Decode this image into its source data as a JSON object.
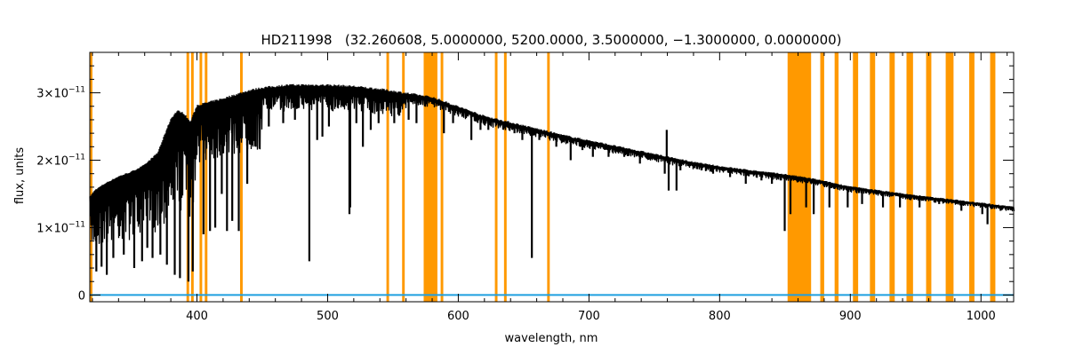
{
  "chart_data": {
    "type": "line",
    "title": "HD211998   (32.260608, 5.0000000, 5200.0000, 3.5000000, −1.3000000, 0.0000000)",
    "xlabel": "wavelength, nm",
    "ylabel": "flux, units",
    "xlim": [
      318,
      1025
    ],
    "ylim": [
      -1e-12,
      3.6e-11
    ],
    "x_ticks": [
      400,
      500,
      600,
      700,
      800,
      900,
      1000
    ],
    "x_tick_labels": [
      "400",
      "500",
      "600",
      "700",
      "800",
      "900",
      "1000"
    ],
    "y_ticks": [
      0,
      1e-11,
      2e-11,
      3e-11
    ],
    "y_tick_labels": [
      {
        "mant": "0",
        "exp": ""
      },
      {
        "mant": "1×10",
        "exp": "−11"
      },
      {
        "mant": "2×10",
        "exp": "−11"
      },
      {
        "mant": "3×10",
        "exp": "−11"
      }
    ],
    "grid": false,
    "colors": {
      "spectrum": "#000000",
      "masks": "#ff9900",
      "baseline": "#1f9fdf",
      "axes": "#000000"
    },
    "masked_regions_nm": [
      [
        318,
        320
      ],
      [
        392,
        394
      ],
      [
        395.5,
        397.5
      ],
      [
        402,
        404
      ],
      [
        406,
        408
      ],
      [
        433,
        435
      ],
      [
        545,
        547
      ],
      [
        557,
        559
      ],
      [
        573.5,
        584
      ],
      [
        586.5,
        588.5
      ],
      [
        628,
        630
      ],
      [
        635,
        637
      ],
      [
        668,
        670
      ],
      [
        852,
        870
      ],
      [
        877,
        880
      ],
      [
        888,
        891
      ],
      [
        902,
        906
      ],
      [
        915,
        919
      ],
      [
        930,
        934
      ],
      [
        943,
        948
      ],
      [
        958,
        962
      ],
      [
        973,
        979
      ],
      [
        991,
        995
      ],
      [
        1007,
        1011
      ]
    ],
    "spectrum_continuum": {
      "x": [
        318,
        322,
        330,
        340,
        350,
        360,
        370,
        375,
        380,
        385,
        390,
        395,
        400,
        410,
        420,
        430,
        440,
        450,
        460,
        470,
        480,
        490,
        500,
        510,
        520,
        530,
        540,
        550,
        560,
        570,
        580,
        600,
        620,
        650,
        680,
        700,
        720,
        750,
        780,
        800,
        820,
        850,
        870,
        900,
        950,
        1000,
        1025
      ],
      "y": [
        1.45e-11,
        1.55e-11,
        1.65e-11,
        1.75e-11,
        1.82e-11,
        1.92e-11,
        2.1e-11,
        2.35e-11,
        2.6e-11,
        2.72e-11,
        2.68e-11,
        2.55e-11,
        2.8e-11,
        2.85e-11,
        2.9e-11,
        2.96e-11,
        3.02e-11,
        3.06e-11,
        3.08e-11,
        3.1e-11,
        3.1e-11,
        3.1e-11,
        3.1e-11,
        3.09e-11,
        3.08e-11,
        3.06e-11,
        3.04e-11,
        3.01e-11,
        2.98e-11,
        2.95e-11,
        2.92e-11,
        2.78e-11,
        2.64e-11,
        2.5e-11,
        2.36e-11,
        2.28e-11,
        2.2e-11,
        2.08e-11,
        1.96e-11,
        1.9e-11,
        1.85e-11,
        1.78e-11,
        1.72e-11,
        1.6e-11,
        1.47e-11,
        1.36e-11,
        1.3e-11
      ]
    },
    "absorption_lines": [
      {
        "x": 323,
        "y": 3.5e-12
      },
      {
        "x": 327,
        "y": 4.2e-12
      },
      {
        "x": 331,
        "y": 3e-12
      },
      {
        "x": 336,
        "y": 5.5e-12
      },
      {
        "x": 344,
        "y": 6e-12
      },
      {
        "x": 352,
        "y": 4e-12
      },
      {
        "x": 358,
        "y": 5e-12
      },
      {
        "x": 362,
        "y": 7e-12
      },
      {
        "x": 366,
        "y": 5.5e-12
      },
      {
        "x": 372,
        "y": 6e-12
      },
      {
        "x": 377,
        "y": 4.5e-12
      },
      {
        "x": 383,
        "y": 3e-12
      },
      {
        "x": 387,
        "y": 2.5e-12
      },
      {
        "x": 393.5,
        "y": 2e-12
      },
      {
        "x": 396.8,
        "y": 3.5e-12
      },
      {
        "x": 405,
        "y": 9e-12
      },
      {
        "x": 410,
        "y": 9.5e-12
      },
      {
        "x": 414,
        "y": 1e-11
      },
      {
        "x": 419,
        "y": 1.5e-11
      },
      {
        "x": 423,
        "y": 9.5e-12
      },
      {
        "x": 427,
        "y": 1.1e-11
      },
      {
        "x": 432,
        "y": 9.5e-12
      },
      {
        "x": 438.5,
        "y": 1.65e-11
      },
      {
        "x": 445,
        "y": 2.2e-11
      },
      {
        "x": 455,
        "y": 2.5e-11
      },
      {
        "x": 466,
        "y": 2.55e-11
      },
      {
        "x": 475,
        "y": 2.6e-11
      },
      {
        "x": 486,
        "y": 5e-12
      },
      {
        "x": 492,
        "y": 2.3e-11
      },
      {
        "x": 496,
        "y": 2.35e-11
      },
      {
        "x": 501,
        "y": 2.5e-11
      },
      {
        "x": 516.7,
        "y": 1.2e-11
      },
      {
        "x": 517.3,
        "y": 1.3e-11
      },
      {
        "x": 522,
        "y": 2.55e-11
      },
      {
        "x": 527,
        "y": 2.2e-11
      },
      {
        "x": 533,
        "y": 2.45e-11
      },
      {
        "x": 539,
        "y": 2.55e-11
      },
      {
        "x": 551,
        "y": 2.55e-11
      },
      {
        "x": 562,
        "y": 2.6e-11
      },
      {
        "x": 568,
        "y": 2.55e-11
      },
      {
        "x": 589,
        "y": 2.4e-11
      },
      {
        "x": 596,
        "y": 2.55e-11
      },
      {
        "x": 610,
        "y": 2.3e-11
      },
      {
        "x": 617,
        "y": 2.45e-11
      },
      {
        "x": 623,
        "y": 2.45e-11
      },
      {
        "x": 643,
        "y": 2.4e-11
      },
      {
        "x": 649,
        "y": 2.3e-11
      },
      {
        "x": 656.3,
        "y": 5.5e-12
      },
      {
        "x": 662,
        "y": 2.3e-11
      },
      {
        "x": 675,
        "y": 2.2e-11
      },
      {
        "x": 686,
        "y": 2e-11
      },
      {
        "x": 695,
        "y": 2.15e-11
      },
      {
        "x": 703,
        "y": 2.05e-11
      },
      {
        "x": 715,
        "y": 2.05e-11
      },
      {
        "x": 727,
        "y": 2.05e-11
      },
      {
        "x": 739,
        "y": 1.95e-11
      },
      {
        "x": 758,
        "y": 1.8e-11
      },
      {
        "x": 761,
        "y": 1.55e-11
      },
      {
        "x": 767,
        "y": 1.55e-11
      },
      {
        "x": 770,
        "y": 1.85e-11
      },
      {
        "x": 783,
        "y": 1.9e-11
      },
      {
        "x": 795,
        "y": 1.8e-11
      },
      {
        "x": 808,
        "y": 1.75e-11
      },
      {
        "x": 820,
        "y": 1.65e-11
      },
      {
        "x": 832,
        "y": 1.7e-11
      },
      {
        "x": 840,
        "y": 1.65e-11
      },
      {
        "x": 847,
        "y": 1.7e-11
      },
      {
        "x": 849.8,
        "y": 9.5e-12
      },
      {
        "x": 854.2,
        "y": 1.2e-11
      },
      {
        "x": 866.2,
        "y": 1.3e-11
      },
      {
        "x": 872,
        "y": 1.2e-11
      },
      {
        "x": 884,
        "y": 1.3e-11
      },
      {
        "x": 898,
        "y": 1.3e-11
      },
      {
        "x": 909,
        "y": 1.35e-11
      },
      {
        "x": 925,
        "y": 1.3e-11
      },
      {
        "x": 938,
        "y": 1.3e-11
      },
      {
        "x": 953,
        "y": 1.3e-11
      },
      {
        "x": 968,
        "y": 1.35e-11
      },
      {
        "x": 985,
        "y": 1.25e-11
      },
      {
        "x": 1001,
        "y": 1.2e-11
      },
      {
        "x": 1005,
        "y": 1.05e-11
      },
      {
        "x": 1015,
        "y": 1.25e-11
      }
    ],
    "emission_features": [
      {
        "x": 759.5,
        "y": 2.45e-11
      }
    ],
    "baseline_y": 0
  }
}
